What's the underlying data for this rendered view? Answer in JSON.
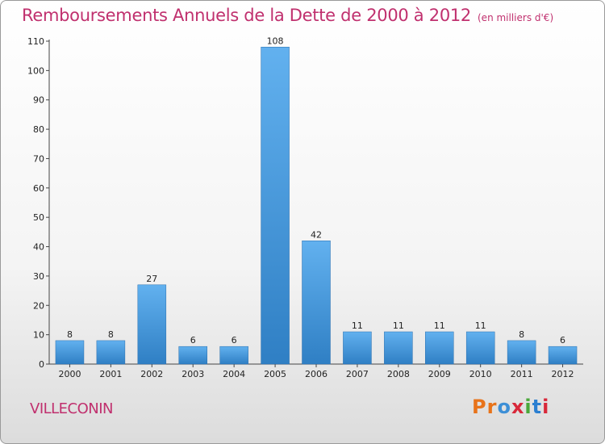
{
  "chart_data": {
    "type": "bar",
    "title": "Remboursements Annuels de la Dette de 2000 à 2012",
    "subtitle": "(en milliers d'€)",
    "categories": [
      "2000",
      "2001",
      "2002",
      "2003",
      "2004",
      "2005",
      "2006",
      "2007",
      "2008",
      "2009",
      "2010",
      "2011",
      "2012"
    ],
    "values": [
      8,
      8,
      27,
      6,
      6,
      108,
      42,
      11,
      11,
      11,
      11,
      8,
      6
    ],
    "ylim": [
      0,
      110
    ],
    "yticks": [
      0,
      10,
      20,
      30,
      40,
      50,
      60,
      70,
      80,
      90,
      100,
      110
    ],
    "grid": false,
    "bar_color": "#3d8fd6",
    "xlabel": "",
    "ylabel": ""
  },
  "footer": {
    "commune": "VILLECONIN",
    "logo": "Proxiti"
  },
  "colors": {
    "title": "#c0306e",
    "logo": [
      "#e8731a",
      "#e8731a",
      "#3d8fd6",
      "#d8283a",
      "#4aa83a",
      "#2b7fd1",
      "#d8283a"
    ]
  }
}
